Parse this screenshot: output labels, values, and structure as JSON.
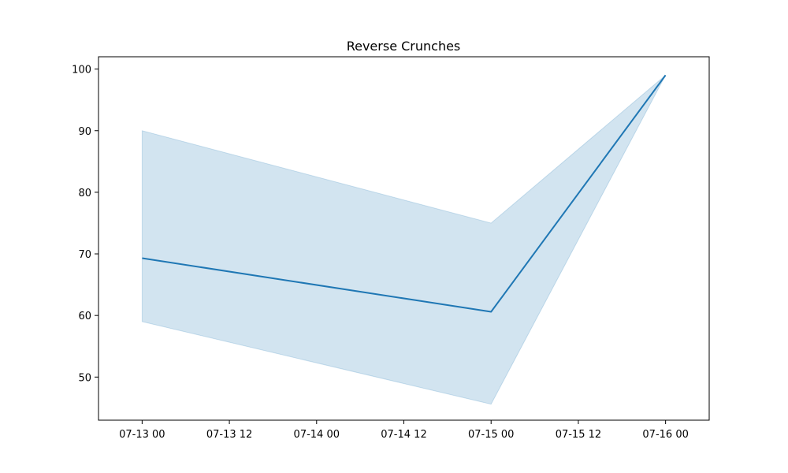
{
  "chart_data": {
    "type": "line",
    "title": "Reverse Crunches",
    "xlabel": "",
    "ylabel": "",
    "x": [
      "2023-07-13T00:00",
      "2023-07-15T00:00",
      "2023-07-16T00:00"
    ],
    "xlim": [
      "2023-07-12T18:00",
      "2023-07-16T06:00"
    ],
    "ylim": [
      43,
      102
    ],
    "x_ticks": [
      "2023-07-13T00:00",
      "2023-07-13T12:00",
      "2023-07-14T00:00",
      "2023-07-14T12:00",
      "2023-07-15T00:00",
      "2023-07-15T12:00",
      "2023-07-16T00:00"
    ],
    "x_tick_labels": [
      "07-13 00",
      "07-13 12",
      "07-14 00",
      "07-14 12",
      "07-15 00",
      "07-15 12",
      "07-16 00"
    ],
    "y_ticks": [
      50,
      60,
      70,
      80,
      90,
      100
    ],
    "y_tick_labels": [
      "50",
      "60",
      "70",
      "80",
      "90",
      "100"
    ],
    "series": [
      {
        "values": [
          69.3,
          60.6,
          99
        ],
        "band_upper": [
          90,
          75,
          99
        ],
        "band_lower": [
          59,
          45.6,
          99
        ],
        "color": "#1f77b4",
        "band_color": "#1f77b4",
        "band_opacity": 0.2
      }
    ],
    "grid": false,
    "legend": "none"
  }
}
